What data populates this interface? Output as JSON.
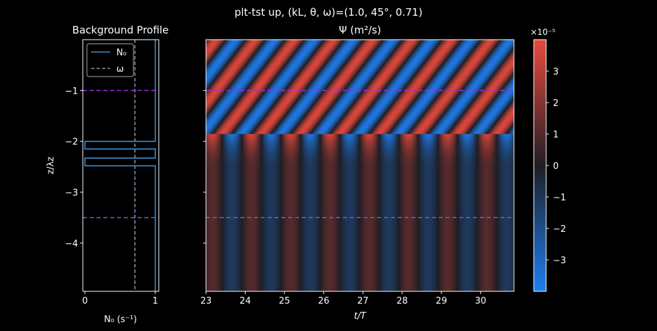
{
  "figure": {
    "suptitle": "plt-tst up, (kL, θ, ω)=(1.0, 45°, 0.71)"
  },
  "chart_data": [
    {
      "type": "line",
      "title": "Background Profile",
      "xlabel": "N₀ (s⁻¹)",
      "ylabel": "z/λz",
      "xlim": [
        -0.03,
        1.05
      ],
      "ylim": [
        -4.95,
        0.0
      ],
      "xticks": [
        "0",
        "1"
      ],
      "xtick_values": [
        0,
        1
      ],
      "yticks": [
        "−1",
        "−2",
        "−3",
        "−4"
      ],
      "ytick_values": [
        -1,
        -2,
        -3,
        -4
      ],
      "legend": {
        "placement": "top-left",
        "entries": [
          "N₀",
          "ω"
        ]
      },
      "series": [
        {
          "name": "N₀",
          "style": "solid",
          "color": "#3a8fd6",
          "points": [
            [
              1.0,
              0.0
            ],
            [
              1.0,
              -2.0
            ],
            [
              0.0,
              -2.0
            ],
            [
              0.0,
              -2.15
            ],
            [
              1.0,
              -2.15
            ],
            [
              1.0,
              -2.33
            ],
            [
              0.0,
              -2.33
            ],
            [
              0.0,
              -2.48
            ],
            [
              1.0,
              -2.48
            ],
            [
              1.0,
              -4.95
            ]
          ]
        },
        {
          "name": "ω",
          "style": "dashed",
          "color": "#7a90aa",
          "points": [
            [
              0.71,
              0.0
            ],
            [
              0.71,
              -4.95
            ]
          ]
        }
      ],
      "hlines": [
        {
          "y": -1.0,
          "color": "#9b30e8",
          "style": "dashed"
        },
        {
          "y": -3.5,
          "color": "#5566ee",
          "style": "dashed"
        }
      ]
    },
    {
      "type": "heatmap",
      "title": "Ψ (m²/s)",
      "xlabel": "t/T",
      "ylabel": "",
      "xlim": [
        23.0,
        30.85
      ],
      "ylim": [
        -4.95,
        0.0
      ],
      "xticks": [
        "23",
        "24",
        "25",
        "26",
        "27",
        "28",
        "29",
        "30"
      ],
      "xtick_values": [
        23,
        24,
        25,
        26,
        27,
        28,
        29,
        30
      ],
      "field": {
        "description_of_structure": "upward-phase wave field; large amplitude above z≈-2, weak transmitted wave below z≈-2.5",
        "upper_amplitude": 3.7e-05,
        "lower_amplitude": 1.1e-05,
        "periods_per_unit_t": 1,
        "vertical_wavelength": 1.0
      },
      "hlines": [
        {
          "y": -1.0,
          "color": "#9b30e8",
          "style": "dashed"
        },
        {
          "y": -3.5,
          "color": "#5566ee",
          "style": "dashed"
        }
      ],
      "colorbar": {
        "scale_label": "×10⁻⁵",
        "ticks": [
          "−3",
          "−2",
          "−1",
          "0",
          "1",
          "2",
          "3"
        ],
        "tick_values": [
          -3,
          -2,
          -1,
          0,
          1,
          2,
          3
        ],
        "range": [
          -4.0,
          4.0
        ],
        "colors": {
          "low": "#1e7ef0",
          "mid": "#1e1e24",
          "high": "#e8493c"
        }
      }
    }
  ]
}
